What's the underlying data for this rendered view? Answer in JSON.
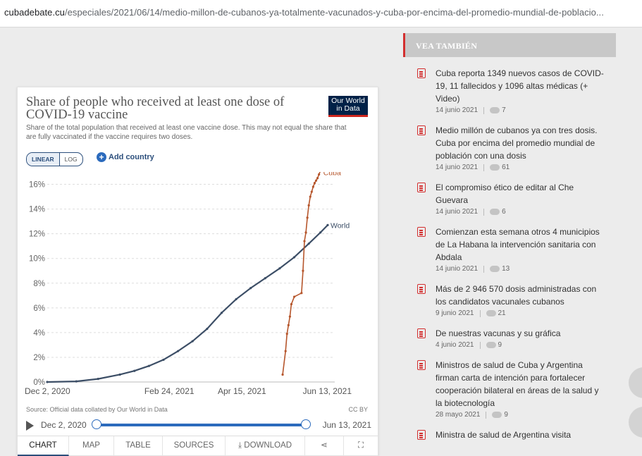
{
  "browser": {
    "domain": "cubadebate.cu",
    "path": "/especiales/2021/06/14/medio-millon-de-cubanos-ya-totalmente-vacunados-y-cuba-por-encima-del-promedio-mundial-de-poblacio..."
  },
  "owid": {
    "title": "Share of people who received at least one dose of COVID-19 vaccine",
    "subtitle": "Share of the total population that received at least one vaccine dose. This may not equal the share that are fully vaccinated if the vaccine requires two doses.",
    "logo_line1": "Our World",
    "logo_line2": "in Data",
    "scale_linear": "LINEAR",
    "scale_log": "LOG",
    "add_country": "Add country",
    "source": "Source: Official data collated by Our World in Data",
    "license": "CC BY",
    "timeline_start": "Dec 2, 2020",
    "timeline_end": "Jun 13, 2021",
    "tabs": [
      "CHART",
      "MAP",
      "TABLE",
      "SOURCES",
      "DOWNLOAD",
      "",
      ""
    ]
  },
  "chart_data": {
    "type": "line",
    "ylim": [
      0,
      17
    ],
    "yticks": [
      "0%",
      "2%",
      "4%",
      "6%",
      "8%",
      "10%",
      "12%",
      "14%",
      "16%"
    ],
    "ytick_values": [
      0,
      2,
      4,
      6,
      8,
      10,
      12,
      14,
      16
    ],
    "xticks": [
      "Dec 2, 2020",
      "Feb 24, 2021",
      "Apr 15, 2021",
      "Jun 13, 2021"
    ],
    "xtick_days": [
      0,
      84,
      134,
      193
    ],
    "x_range_days": [
      0,
      193
    ],
    "series": [
      {
        "name": "World",
        "color": "#3c4e66",
        "x": [
          0,
          20,
          35,
          50,
          60,
          70,
          80,
          90,
          100,
          110,
          120,
          130,
          140,
          150,
          160,
          170,
          180,
          188,
          193
        ],
        "y": [
          0,
          0.05,
          0.25,
          0.6,
          0.9,
          1.3,
          1.8,
          2.5,
          3.3,
          4.3,
          5.6,
          6.7,
          7.6,
          8.4,
          9.2,
          10.1,
          11.2,
          12.1,
          12.7
        ]
      },
      {
        "name": "Cuba",
        "color": "#b6562c",
        "x": [
          162,
          164,
          165,
          166,
          167,
          168,
          170,
          175,
          176,
          177,
          178,
          179,
          180,
          181,
          182,
          183,
          184,
          185,
          186,
          187,
          188
        ],
        "y": [
          0.6,
          2.5,
          3.9,
          4.6,
          5.3,
          6.3,
          6.9,
          7.2,
          9.0,
          11.4,
          12.1,
          13.3,
          14.3,
          15.0,
          15.4,
          15.8,
          16.1,
          16.3,
          16.5,
          16.8,
          17.1
        ]
      }
    ]
  },
  "sidebar": {
    "heading": "VEA TAMBIÉN",
    "items": [
      {
        "title": "Cuba reporta 1349 nuevos casos de COVID-19, 11 fallecidos y 1096 altas médicas (+ Video)",
        "date": "14 junio 2021",
        "comments": "7"
      },
      {
        "title": "Medio millón de cubanos ya con tres dosis. Cuba por encima del promedio mundial de población con una dosis",
        "date": "14 junio 2021",
        "comments": "61"
      },
      {
        "title": "El compromiso ético de editar al Che Guevara",
        "date": "14 junio 2021",
        "comments": "6"
      },
      {
        "title": "Comienzan esta semana otros 4 municipios de La Habana la intervención sanitaria con Abdala",
        "date": "14 junio 2021",
        "comments": "13"
      },
      {
        "title": "Más de 2 946 570 dosis administradas con los candidatos vacunales cubanos",
        "date": "9 junio 2021",
        "comments": "21"
      },
      {
        "title": "De nuestras vacunas y su gráfica",
        "date": "4 junio 2021",
        "comments": "9"
      },
      {
        "title": "Ministros de salud de Cuba y Argentina firman carta de intención para fortalecer cooperación bilateral en áreas de la salud y la biotecnología",
        "date": "28 mayo 2021",
        "comments": "9"
      },
      {
        "title": "Ministra de salud de Argentina visita",
        "date": "",
        "comments": ""
      }
    ]
  }
}
